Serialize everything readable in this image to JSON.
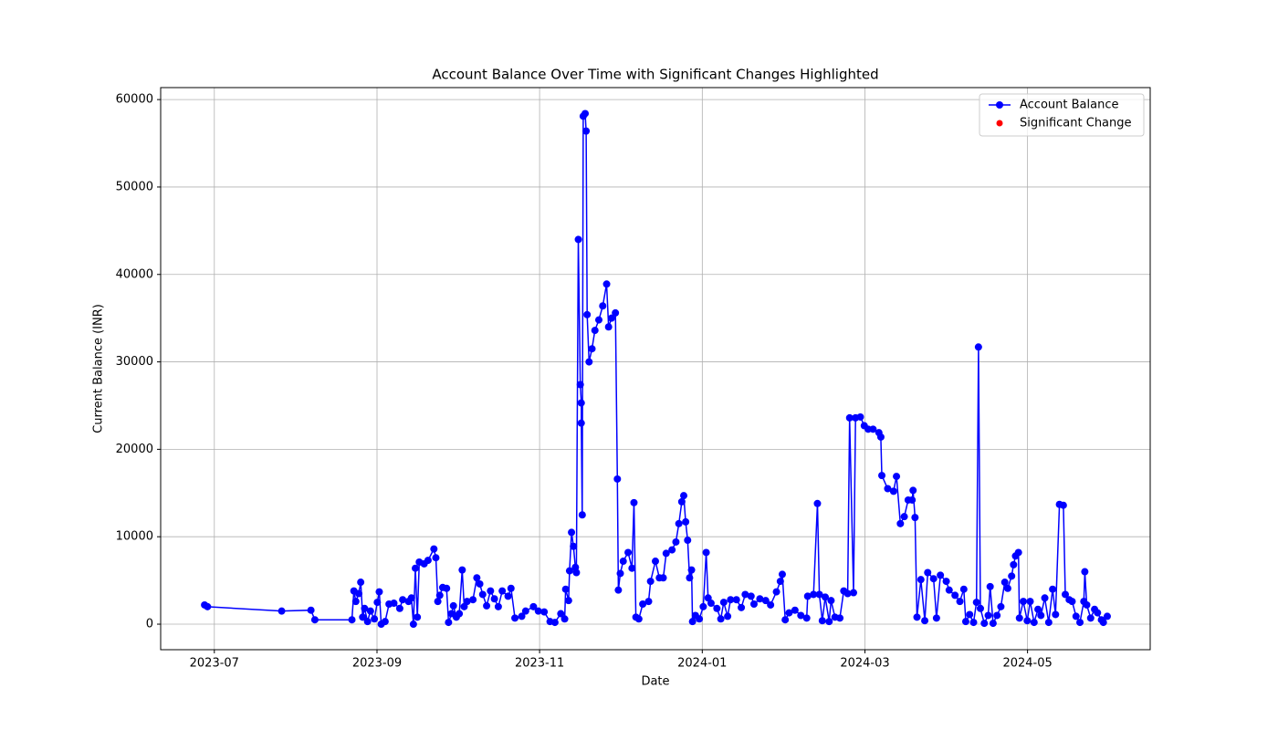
{
  "chart_data": {
    "type": "line",
    "title": "Account Balance Over Time with Significant Changes Highlighted",
    "xlabel": "Date",
    "ylabel": "Current Balance (INR)",
    "x": [
      2023.49,
      2023.493,
      2023.569,
      2023.599,
      2023.603,
      2023.641,
      2023.643,
      2023.645,
      2023.648,
      2023.65,
      2023.652,
      2023.654,
      2023.657,
      2023.66,
      2023.664,
      2023.667,
      2023.669,
      2023.671,
      2023.675,
      2023.679,
      2023.684,
      2023.69,
      2023.693,
      2023.699,
      2023.702,
      2023.704,
      2023.706,
      2023.708,
      2023.71,
      2023.715,
      2023.719,
      2023.725,
      2023.727,
      2023.729,
      2023.731,
      2023.734,
      2023.738,
      2023.74,
      2023.743,
      2023.745,
      2023.748,
      2023.751,
      2023.754,
      2023.756,
      2023.759,
      2023.765,
      2023.769,
      2023.772,
      2023.775,
      2023.779,
      2023.783,
      2023.787,
      2023.791,
      2023.795,
      2023.801,
      2023.804,
      2023.808,
      2023.815,
      2023.819,
      2023.827,
      2023.832,
      2023.838,
      2023.844,
      2023.849,
      2023.855,
      2023.859,
      2023.86,
      2023.863,
      2023.864,
      2023.866,
      2023.868,
      2023.87,
      2023.871,
      2023.873,
      2023.875,
      2023.876,
      2023.876,
      2023.877,
      2023.878,
      2023.88,
      2023.881,
      2023.882,
      2023.884,
      2023.887,
      2023.89,
      2023.894,
      2023.898,
      2023.902,
      2023.904,
      2023.907,
      2023.911,
      2023.913,
      2023.914,
      2023.916,
      2023.919,
      2023.924,
      2023.928,
      2023.93,
      2023.932,
      2023.935,
      2023.939,
      2023.945,
      2023.947,
      2023.952,
      2023.956,
      2023.96,
      2023.963,
      2023.969,
      2023.973,
      2023.976,
      2023.979,
      2023.981,
      2023.983,
      2023.985,
      2023.987,
      2023.989,
      2023.99,
      2023.993,
      2023.997,
      2024.001,
      2024.004,
      2024.006,
      2024.009,
      2024.015,
      2024.019,
      2024.022,
      2024.026,
      2024.029,
      2024.035,
      2024.04,
      2024.044,
      2024.05,
      2024.053,
      2024.059,
      2024.065,
      2024.07,
      2024.076,
      2024.08,
      2024.082,
      2024.085,
      2024.089,
      2024.095,
      2024.101,
      2024.107,
      2024.108,
      2024.114,
      2024.118,
      2024.12,
      2024.123,
      2024.126,
      2024.13,
      2024.132,
      2024.136,
      2024.141,
      2024.145,
      2024.149,
      2024.151,
      2024.155,
      2024.157,
      2024.162,
      2024.166,
      2024.17,
      2024.175,
      2024.181,
      2024.183,
      2024.184,
      2024.19,
      2024.196,
      2024.199,
      2024.203,
      2024.207,
      2024.211,
      2024.215,
      2024.216,
      2024.218,
      2024.22,
      2024.224,
      2024.228,
      2024.231,
      2024.237,
      2024.24,
      2024.244,
      2024.25,
      2024.253,
      2024.259,
      2024.264,
      2024.268,
      2024.27,
      2024.274,
      2024.278,
      2024.281,
      2024.283,
      2024.285,
      2024.289,
      2024.293,
      2024.295,
      2024.298,
      2024.302,
      2024.306,
      2024.31,
      2024.313,
      2024.317,
      2024.319,
      2024.321,
      2024.324,
      2024.325,
      2024.329,
      2024.333,
      2024.336,
      2024.34,
      2024.344,
      2024.347,
      2024.351,
      2024.355,
      2024.359,
      2024.362,
      2024.366,
      2024.37,
      2024.372,
      2024.376,
      2024.379,
      2024.383,
      2024.387,
      2024.391,
      2024.392,
      2024.394,
      2024.398,
      2024.402,
      2024.405,
      2024.409,
      2024.411,
      2024.415
    ],
    "series": [
      {
        "name": "Account Balance",
        "color": "#0000ff",
        "marker": "o",
        "values": [
          2200,
          2000,
          1500,
          1600,
          500,
          500,
          3800,
          2600,
          3500,
          4800,
          800,
          1800,
          300,
          1500,
          600,
          2500,
          3700,
          0,
          300,
          2300,
          2400,
          1800,
          2800,
          2600,
          3000,
          0,
          6400,
          800,
          7100,
          6900,
          7300,
          8600,
          7600,
          2600,
          3300,
          4200,
          4100,
          200,
          1200,
          2100,
          800,
          1200,
          6200,
          2000,
          2600,
          2800,
          5300,
          4600,
          3400,
          2100,
          3800,
          2900,
          2000,
          3800,
          3200,
          4100,
          700,
          900,
          1500,
          2000,
          1500,
          1400,
          300,
          200,
          1200,
          600,
          4000,
          2700,
          6100,
          10500,
          8900,
          6500,
          5900,
          44000,
          27400,
          25300,
          23000,
          12500,
          58100,
          58400,
          56400,
          35400,
          30000,
          31500,
          33600,
          34800,
          36400,
          38900,
          34000,
          35000,
          35600,
          16600,
          3900,
          5800,
          7200,
          8200,
          6400,
          13900,
          800,
          600,
          2300,
          2600,
          4900,
          7200,
          5300,
          5300,
          8100,
          8500,
          9400,
          11500,
          14000,
          14700,
          11700,
          9600,
          5300,
          6200,
          300,
          1000,
          600,
          2000,
          8200,
          3000,
          2400,
          1800,
          600,
          2500,
          900,
          2800,
          2800,
          1900,
          3400,
          3200,
          2300,
          2900,
          2700,
          2200,
          3700,
          4900,
          5700,
          500,
          1300,
          1600,
          1000,
          700,
          3200,
          3400,
          13800,
          3400,
          400,
          3100,
          300,
          2700,
          800,
          700,
          3800,
          3500,
          23600,
          3600,
          23600,
          23700,
          22700,
          22300,
          22300,
          21900,
          21400,
          17000,
          15500,
          15200,
          16900,
          11500,
          12300,
          14200,
          14200,
          15300,
          12200,
          800,
          5100,
          400,
          5900,
          5200,
          700,
          5600,
          4900,
          3900,
          3300,
          2600,
          4000,
          300,
          1100,
          200,
          2500,
          31700,
          1800,
          100,
          1000,
          4300,
          100,
          1000,
          2000,
          4800,
          4100,
          5500,
          6800,
          7800,
          8200,
          700,
          2600,
          400,
          2600,
          200,
          1700,
          1000,
          3000,
          200,
          4000,
          1100,
          13700,
          13600,
          3400,
          2800,
          2600,
          900,
          200,
          2600,
          6000,
          2200,
          700,
          1700,
          1300,
          500,
          200,
          900
        ]
      },
      {
        "name": "Significant Change",
        "color": "#ff0000",
        "marker": "o",
        "x": [],
        "values": []
      }
    ],
    "xlim": [
      2023.445,
      2024.459
    ],
    "xticks": [
      {
        "value": 2023.5,
        "label": "2023-07"
      },
      {
        "value": 2023.6667,
        "label": "2023-09"
      },
      {
        "value": 2023.8333,
        "label": "2023-11"
      },
      {
        "value": 2024.0,
        "label": "2024-01"
      },
      {
        "value": 2024.1667,
        "label": "2024-03"
      },
      {
        "value": 2024.3333,
        "label": "2024-05"
      }
    ],
    "ylim": [
      -2920,
      61370
    ],
    "yticks": [
      0,
      10000,
      20000,
      30000,
      40000,
      50000,
      60000
    ],
    "grid": true,
    "legend": "upper right"
  }
}
